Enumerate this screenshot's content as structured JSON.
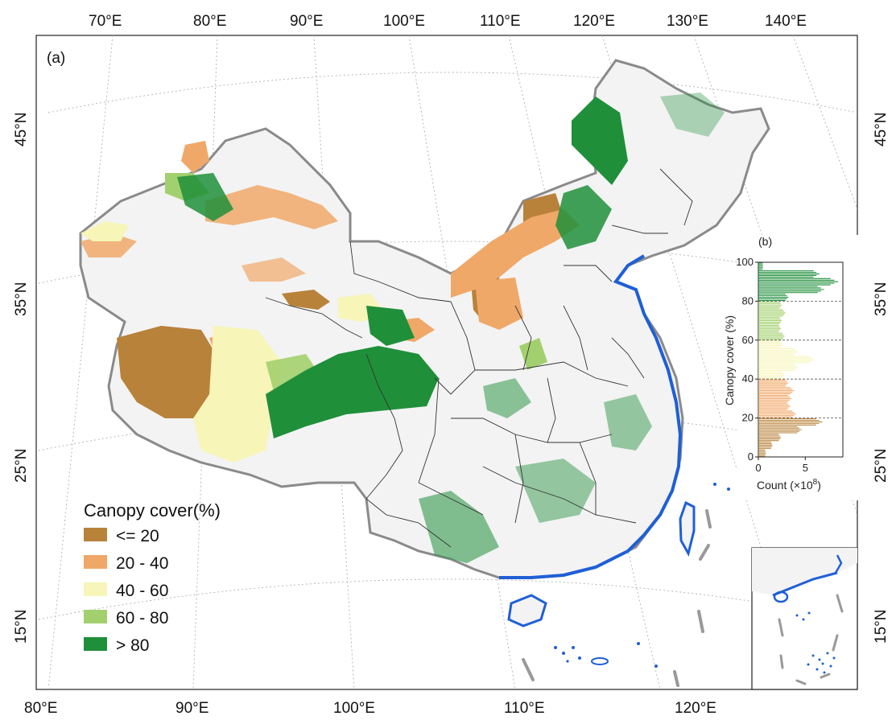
{
  "panel_a_label": "(a)",
  "panel_b_label": "(b)",
  "top_longitude_labels": [
    "70°E",
    "80°E",
    "90°E",
    "100°E",
    "110°E",
    "120°E",
    "130°E",
    "140°E"
  ],
  "bottom_longitude_labels": [
    "80°E",
    "90°E",
    "100°E",
    "110°E",
    "120°E"
  ],
  "left_latitude_labels": [
    "45°N",
    "35°N",
    "25°N",
    "15°N"
  ],
  "right_latitude_labels": [
    "45°N",
    "35°N",
    "25°N",
    "15°N"
  ],
  "legend": {
    "title": "Canopy cover(%)",
    "items": [
      {
        "label": "<= 20",
        "color": "#b8823a"
      },
      {
        "label": "20 - 40",
        "color": "#f0a868"
      },
      {
        "label": "40 - 60",
        "color": "#f7f5b8"
      },
      {
        "label": "60 - 80",
        "color": "#a3d06e"
      },
      {
        "label": "> 80",
        "color": "#1f8f3a"
      }
    ]
  },
  "colors": {
    "land": "#f3f3f3",
    "border": "#8a8a8a",
    "province": "#333333",
    "coast": "#1f5fd6",
    "dash_line": "#999999"
  },
  "chart_data": {
    "type": "bar",
    "orientation": "horizontal",
    "ylabel": "Canopy cover (%)",
    "xlabel": "Count (×10",
    "xlabel_exp": "8",
    "xlabel_end": ")",
    "x_ticks": [
      "0",
      "5"
    ],
    "y_ticks": [
      "0",
      "20",
      "40",
      "60",
      "80",
      "100"
    ],
    "xlim": [
      0,
      9
    ],
    "ylim": [
      0,
      100
    ],
    "bins": [
      {
        "y": 2,
        "v": 0.8
      },
      {
        "y": 6,
        "v": 1.5
      },
      {
        "y": 10,
        "v": 2.4
      },
      {
        "y": 14,
        "v": 4.6
      },
      {
        "y": 18,
        "v": 6.8
      },
      {
        "y": 22,
        "v": 4.0
      },
      {
        "y": 26,
        "v": 3.4
      },
      {
        "y": 30,
        "v": 3.5
      },
      {
        "y": 34,
        "v": 3.8
      },
      {
        "y": 38,
        "v": 3.2
      },
      {
        "y": 42,
        "v": 2.8
      },
      {
        "y": 46,
        "v": 4.2
      },
      {
        "y": 50,
        "v": 6.0
      },
      {
        "y": 54,
        "v": 4.2
      },
      {
        "y": 58,
        "v": 2.6
      },
      {
        "y": 62,
        "v": 2.8
      },
      {
        "y": 66,
        "v": 2.4
      },
      {
        "y": 70,
        "v": 2.5
      },
      {
        "y": 74,
        "v": 2.9
      },
      {
        "y": 78,
        "v": 2.5
      },
      {
        "y": 82,
        "v": 3.2
      },
      {
        "y": 86,
        "v": 7.0
      },
      {
        "y": 90,
        "v": 8.5
      },
      {
        "y": 94,
        "v": 6.5
      },
      {
        "y": 98,
        "v": 0.5
      }
    ],
    "dashed_lines_at": [
      20,
      40,
      60,
      80
    ]
  }
}
